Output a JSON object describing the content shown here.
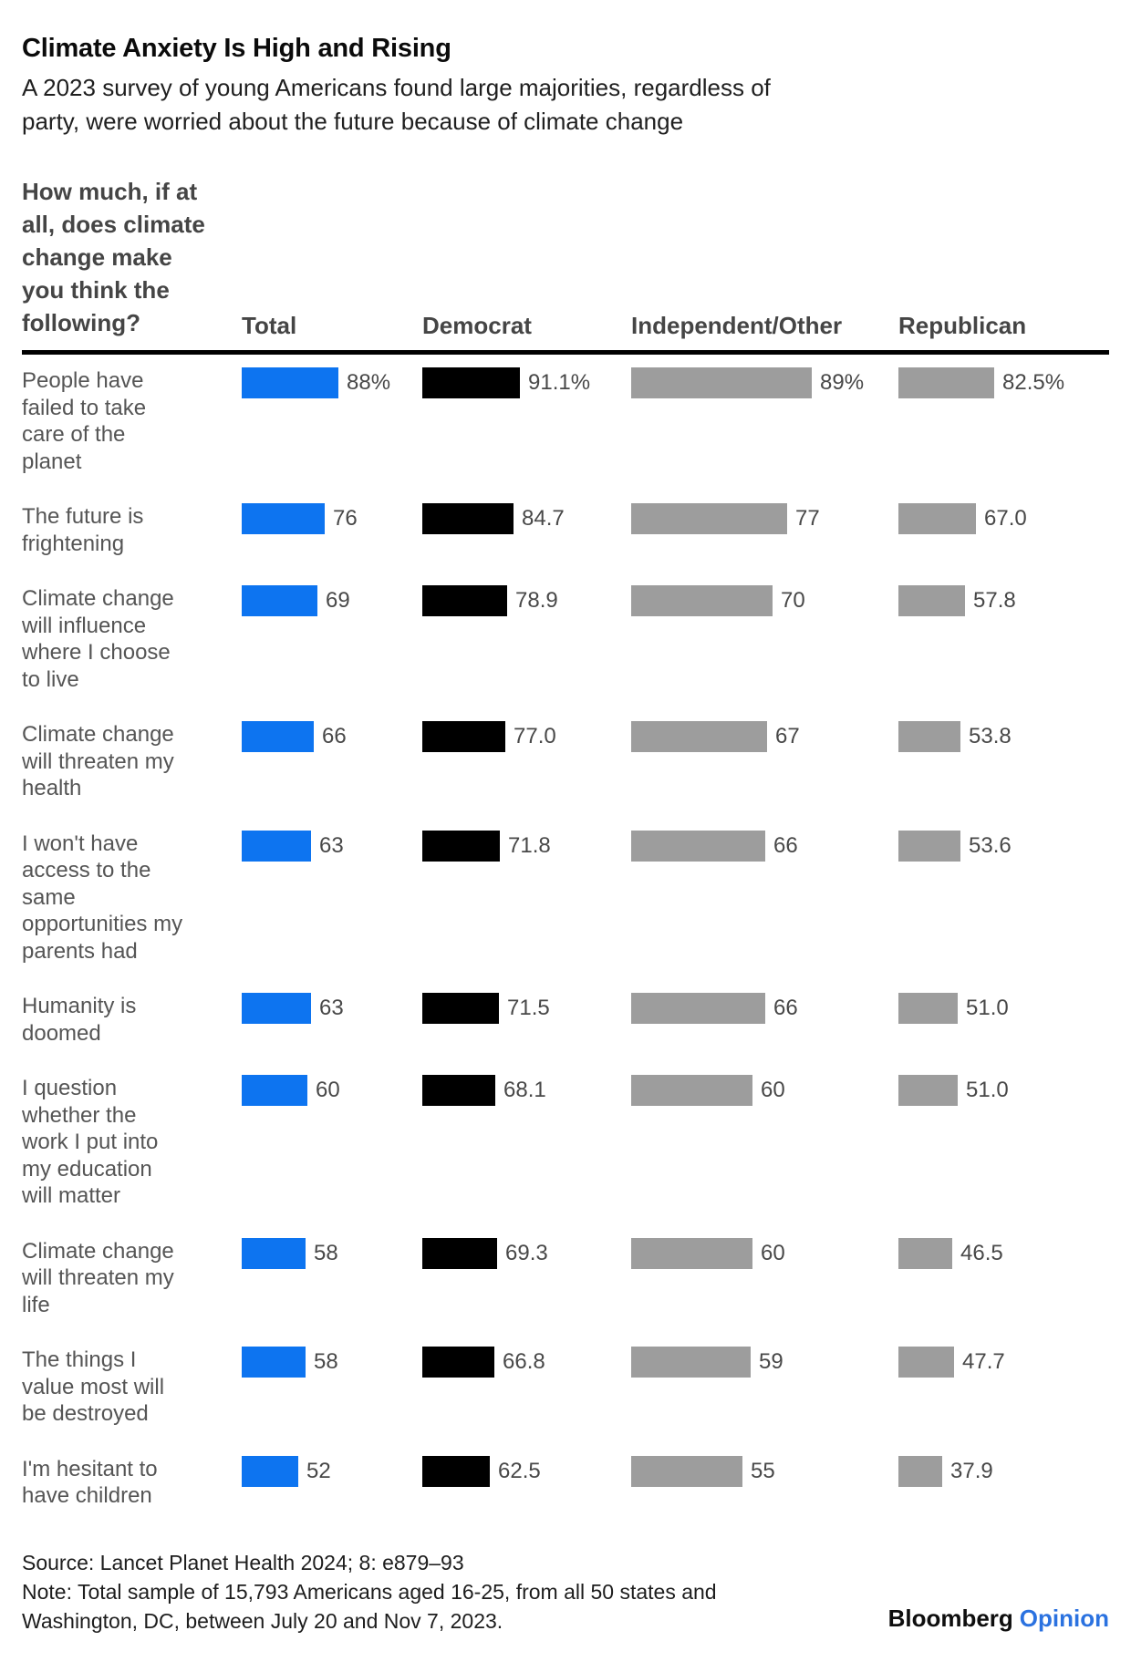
{
  "header": {
    "title": "Climate Anxiety Is High and Rising",
    "subtitle_lines": [
      "A 2023 survey of young Americans found large majorities, regardless of",
      "party, were worried about the future because of climate change"
    ]
  },
  "chart_data": {
    "type": "bar",
    "title": "Climate Anxiety Is High and Rising",
    "subtitle": "A 2023 survey of young Americans found large majorities, regardless of party, were worried about the future because of climate change",
    "question": "How much, if at all, does climate change make you think the following?",
    "question_lines": [
      "How much, if at",
      "all, does climate",
      "change make",
      "you think the",
      "following?"
    ],
    "orientation": "horizontal",
    "xlim": [
      0,
      100
    ],
    "grid": false,
    "value_labels": "end-of-bar",
    "unit": "percent",
    "categories": [
      "People have failed to take care of the planet",
      "The future is frightening",
      "Climate change will influence where I choose to live",
      "Climate change will threaten my health",
      "I won't have access to the same opportunities my parents had",
      "Humanity is doomed",
      "I question whether the work I put into my education will matter",
      "Climate change will threaten my life",
      "The things I value most will be destroyed",
      "I'm hesitant to have children"
    ],
    "category_label_lines": [
      [
        "People have",
        "failed to take",
        "care of the",
        "planet"
      ],
      [
        "The future is",
        "frightening"
      ],
      [
        "Climate change",
        "will influence",
        "where I choose",
        "to live"
      ],
      [
        "Climate change",
        "will threaten my",
        "health"
      ],
      [
        "I won't have",
        "access to the",
        "same",
        "opportunities my",
        "parents had"
      ],
      [
        "Humanity is",
        "doomed"
      ],
      [
        "I question",
        "whether the",
        "work I put into",
        "my education",
        "will matter"
      ],
      [
        "Climate change",
        "will threaten my",
        "life"
      ],
      [
        "The things I",
        "value most will",
        "be destroyed"
      ],
      [
        "I'm hesitant to",
        "have children"
      ]
    ],
    "series": [
      {
        "name": "Total",
        "color": "#0d74f0",
        "values": [
          88,
          76,
          69,
          66,
          63,
          63,
          60,
          58,
          58,
          52
        ],
        "display": [
          "88%",
          "76",
          "69",
          "66",
          "63",
          "63",
          "60",
          "58",
          "58",
          "52"
        ]
      },
      {
        "name": "Democrat",
        "color": "#000000",
        "values": [
          91.1,
          84.7,
          78.9,
          77.0,
          71.8,
          71.5,
          68.1,
          69.3,
          66.8,
          62.5
        ],
        "display": [
          "91.1%",
          "84.7",
          "78.9",
          "77.0",
          "71.8",
          "71.5",
          "68.1",
          "69.3",
          "66.8",
          "62.5"
        ]
      },
      {
        "name": "Independent/Other",
        "color": "#9d9d9d",
        "values": [
          89,
          77,
          70,
          67,
          66,
          66,
          60,
          60,
          59,
          55
        ],
        "display": [
          "89%",
          "77",
          "70",
          "67",
          "66",
          "66",
          "60",
          "60",
          "59",
          "55"
        ]
      },
      {
        "name": "Republican",
        "color": "#9d9d9d",
        "values": [
          82.5,
          67.0,
          57.8,
          53.8,
          53.6,
          51.0,
          51.0,
          46.5,
          47.7,
          37.9
        ],
        "display": [
          "82.5%",
          "67.0",
          "57.8",
          "53.8",
          "53.6",
          "51.0",
          "51.0",
          "46.5",
          "47.7",
          "37.9"
        ]
      }
    ]
  },
  "footer": {
    "source": "Source: Lancet Planet Health 2024; 8: e879–93",
    "note_lines": [
      "Note: Total sample of 15,793 Americans aged 16-25, from all 50 states and",
      "Washington, DC, between July 20 and Nov 7, 2023."
    ],
    "logo": {
      "brand": "Bloomberg",
      "product": "Opinion"
    }
  }
}
